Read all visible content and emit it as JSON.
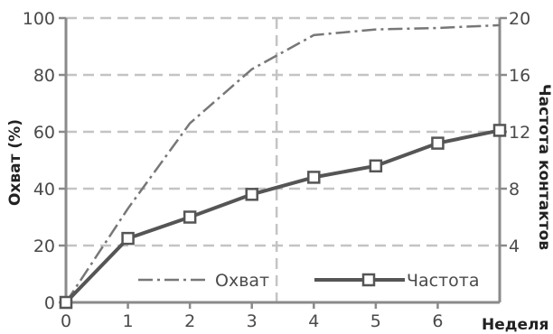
{
  "chart_data": {
    "type": "line",
    "xlabel": "Неделя",
    "ylabel_left": "Охват (%)",
    "ylabel_right": "Частота контактов",
    "x_ticks": [
      "0",
      "1",
      "2",
      "3",
      "4",
      "5",
      "6"
    ],
    "y_left_ticks": [
      "0",
      "20",
      "40",
      "60",
      "80",
      "100"
    ],
    "y_right_ticks": [
      "4",
      "8",
      "12",
      "16",
      "20"
    ],
    "xlim": [
      0,
      7
    ],
    "ylim_left": [
      0,
      100
    ],
    "ylim_right": [
      0,
      20
    ],
    "grid": true,
    "reference_line_x": 3.4,
    "legend_position": "bottom-right",
    "series": [
      {
        "name": "Охват",
        "axis": "left",
        "style": "dash-dot",
        "color": "#777777",
        "x": [
          0,
          1,
          2,
          3,
          4,
          5,
          6,
          7
        ],
        "y": [
          0,
          33,
          63,
          82,
          94,
          96,
          96.5,
          97.5
        ]
      },
      {
        "name": "Частота",
        "axis": "right",
        "style": "solid-square-markers",
        "color": "#555555",
        "x": [
          0,
          1,
          2,
          3,
          4,
          5,
          6,
          7
        ],
        "y": [
          0,
          4.5,
          6,
          7.6,
          8.8,
          9.6,
          11.2,
          12.1
        ]
      }
    ]
  }
}
